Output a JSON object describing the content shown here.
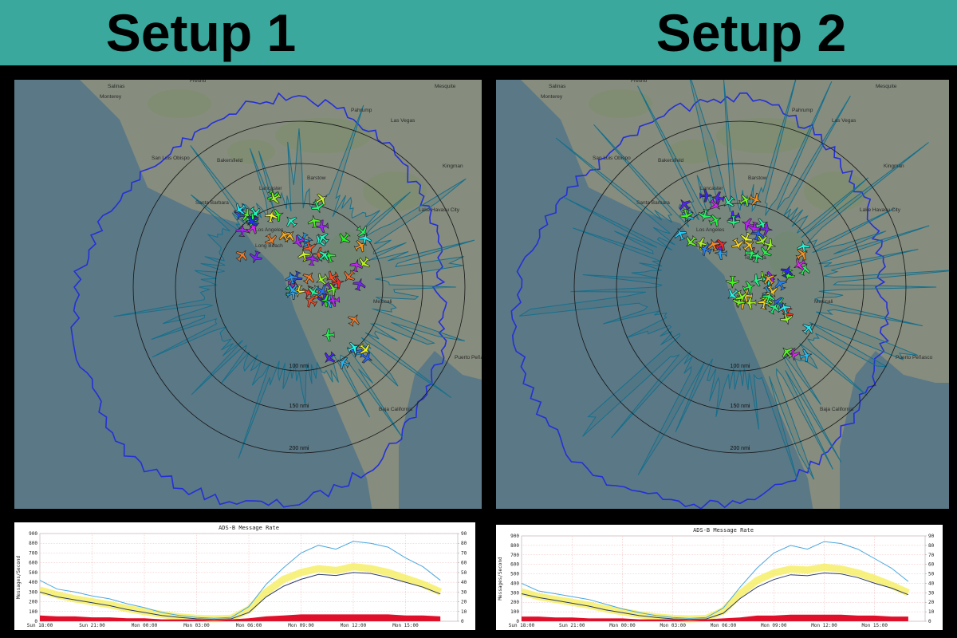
{
  "headings": [
    "Setup 1",
    "Setup 2"
  ],
  "maps": [
    {
      "range_labels": [
        "100 nmi",
        "150 nmi",
        "200 nmi"
      ],
      "places": [
        "Fresno",
        "Salinas",
        "Monterey",
        "Las Vegas",
        "Pahrump",
        "Mesquite",
        "Bakersfield",
        "Lancaster",
        "Barstow",
        "Kingman",
        "Santa Barbara",
        "Los Angeles",
        "Long Beach",
        "Temecula",
        "Mexicali",
        "Baja California",
        "Puerto Peñasco",
        "San Luis Obispo",
        "Lake Havasu City"
      ]
    },
    {
      "range_labels": [
        "100 nmi",
        "150 nmi",
        "200 nmi"
      ],
      "places": [
        "Fresno",
        "Salinas",
        "Monterey",
        "Las Vegas",
        "Pahrump",
        "Mesquite",
        "Bakersfield",
        "Lancaster",
        "Barstow",
        "Kingman",
        "Santa Barbara",
        "Los Angeles",
        "Long Beach",
        "Temecula",
        "Mexicali",
        "Baja California",
        "Puerto Peñasco",
        "San Luis Obispo",
        "Lake Havasu City"
      ]
    }
  ],
  "chart_data": [
    {
      "type": "line",
      "title": "ADS-B Message Rate",
      "ylabel": "Messages/Second",
      "categories": [
        "Sun 18:00",
        null,
        null,
        "Sun 21:00",
        null,
        null,
        "Mon 00:00",
        null,
        null,
        "Mon 03:00",
        null,
        null,
        "Mon 06:00",
        null,
        null,
        "Mon 09:00",
        null,
        null,
        "Mon 12:00",
        null,
        null,
        "Mon 15:00",
        null,
        null
      ],
      "series": [
        {
          "color": "#f4ee55",
          "values": [
            320,
            270,
            230,
            200,
            170,
            130,
            100,
            70,
            45,
            30,
            25,
            30,
            120,
            300,
            430,
            500,
            540,
            520,
            560,
            540,
            500,
            440,
            380,
            300
          ]
        },
        {
          "color": "#4aa8e0",
          "values": [
            420,
            330,
            300,
            260,
            230,
            180,
            140,
            90,
            60,
            40,
            30,
            40,
            150,
            380,
            550,
            700,
            780,
            740,
            820,
            800,
            760,
            650,
            560,
            420
          ]
        },
        {
          "color": "#2a3a6a",
          "values": [
            300,
            250,
            220,
            190,
            160,
            120,
            90,
            60,
            40,
            25,
            20,
            25,
            90,
            250,
            360,
            430,
            480,
            470,
            500,
            490,
            450,
            400,
            350,
            280
          ]
        },
        {
          "color": "#e0102a",
          "axis": "y2",
          "values": [
            6,
            5,
            5,
            4,
            4,
            3,
            3,
            2,
            2,
            2,
            1,
            2,
            3,
            5,
            6,
            7,
            7,
            7,
            7,
            7,
            7,
            6,
            6,
            5
          ]
        }
      ],
      "ylim": [
        0,
        900
      ],
      "yticks": [
        0,
        100,
        200,
        300,
        400,
        500,
        600,
        700,
        800,
        900
      ],
      "y2lim": [
        0,
        90
      ],
      "y2ticks": [
        0,
        10,
        20,
        30,
        40,
        50,
        60,
        70,
        80,
        90
      ],
      "grid": true
    },
    {
      "type": "line",
      "title": "ADS-B Message Rate",
      "ylabel": "Messages/Second",
      "categories": [
        "Sun 18:00",
        null,
        null,
        "Sun 21:00",
        null,
        null,
        "Mon 00:00",
        null,
        null,
        "Mon 03:00",
        null,
        null,
        "Mon 06:00",
        null,
        null,
        "Mon 09:00",
        null,
        null,
        "Mon 12:00",
        null,
        null,
        "Mon 15:00",
        null,
        null
      ],
      "series": [
        {
          "color": "#f4ee55",
          "values": [
            310,
            260,
            230,
            200,
            170,
            130,
            100,
            70,
            45,
            30,
            25,
            30,
            110,
            290,
            430,
            510,
            550,
            540,
            570,
            550,
            510,
            450,
            380,
            300
          ]
        },
        {
          "color": "#4aa8e0",
          "values": [
            400,
            320,
            290,
            260,
            230,
            180,
            130,
            90,
            60,
            40,
            30,
            40,
            140,
            360,
            560,
            720,
            800,
            760,
            840,
            820,
            760,
            660,
            560,
            420
          ]
        },
        {
          "color": "#2a3a6a",
          "values": [
            290,
            250,
            220,
            190,
            160,
            120,
            90,
            60,
            40,
            25,
            20,
            25,
            85,
            240,
            360,
            440,
            490,
            480,
            510,
            500,
            460,
            400,
            350,
            280
          ]
        },
        {
          "color": "#e0102a",
          "axis": "y2",
          "values": [
            5,
            5,
            4,
            4,
            3,
            3,
            3,
            2,
            2,
            2,
            1,
            2,
            3,
            4,
            6,
            6,
            7,
            7,
            7,
            7,
            6,
            6,
            5,
            5
          ]
        }
      ],
      "ylim": [
        0,
        900
      ],
      "yticks": [
        0,
        100,
        200,
        300,
        400,
        500,
        600,
        700,
        800,
        900
      ],
      "y2lim": [
        0,
        90
      ],
      "y2ticks": [
        0,
        10,
        20,
        30,
        40,
        50,
        60,
        70,
        80,
        90
      ],
      "grid": true
    }
  ]
}
